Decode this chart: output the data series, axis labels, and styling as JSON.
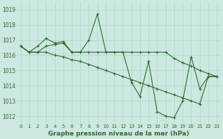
{
  "bg_color": "#cce8e0",
  "grid_color": "#b0d8d0",
  "line_color": "#2d6a2d",
  "marker": "+",
  "title": "Graphe pression niveau de la mer (hPa)",
  "xlim": [
    -0.5,
    23.5
  ],
  "ylim": [
    1011.5,
    1019.5
  ],
  "yticks": [
    1012,
    1013,
    1014,
    1015,
    1016,
    1017,
    1018,
    1019
  ],
  "xticks": [
    0,
    1,
    2,
    3,
    4,
    5,
    6,
    7,
    8,
    9,
    10,
    11,
    12,
    13,
    14,
    15,
    16,
    17,
    18,
    19,
    20,
    21,
    22,
    23
  ],
  "series": [
    [
      1016.6,
      1016.2,
      1016.6,
      1017.1,
      1016.8,
      1016.9,
      1016.2,
      1016.2,
      1017.0,
      1018.7,
      1016.2,
      1016.2,
      1016.2,
      1014.2,
      1013.3,
      1015.6,
      1012.3,
      1012.0,
      1011.9,
      1013.0,
      1015.9,
      1013.8,
      1014.6,
      1014.6
    ],
    [
      1016.6,
      1016.2,
      1016.2,
      1016.6,
      1016.7,
      1016.8,
      1016.2,
      1016.2,
      1016.2,
      1016.2,
      1016.2,
      1016.2,
      1016.2,
      1016.2,
      1016.2,
      1016.2,
      1016.2,
      1016.2,
      1015.8,
      1015.5,
      1015.3,
      1015.0,
      1014.8,
      1014.6
    ],
    [
      1016.6,
      1016.2,
      1016.2,
      1016.2,
      1016.0,
      1015.9,
      1015.7,
      1015.6,
      1015.4,
      1015.2,
      1015.0,
      1014.8,
      1014.6,
      1014.4,
      1014.2,
      1014.0,
      1013.8,
      1013.6,
      1013.4,
      1013.2,
      1013.0,
      1012.8,
      1014.6,
      1014.6
    ]
  ]
}
